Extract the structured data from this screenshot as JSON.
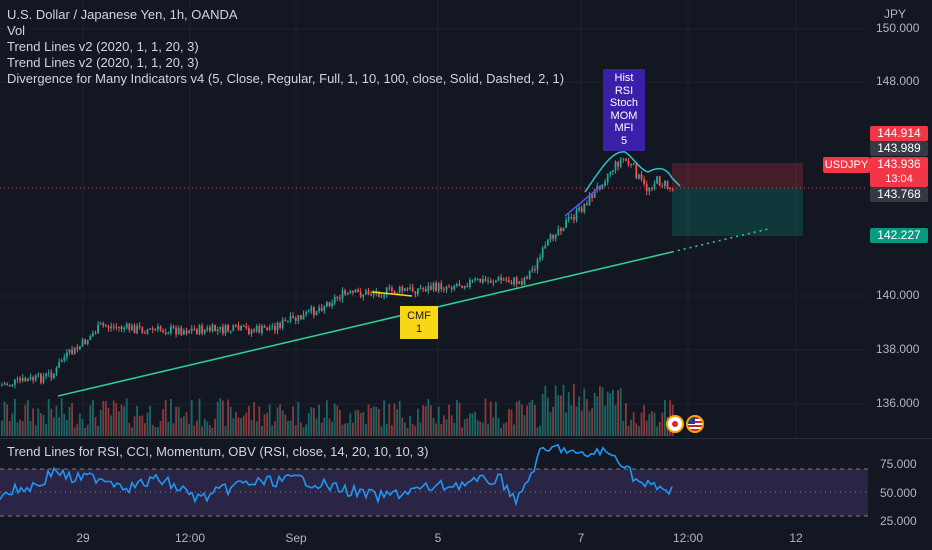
{
  "legend": {
    "title": "U.S. Dollar / Japanese Yen, 1h, OANDA",
    "vol": "Vol",
    "indicator1": "Trend Lines v2 (2020, 1, 1, 20, 3)",
    "indicator2": "Trend Lines v2 (2020, 1, 1, 20, 3)",
    "indicator3": "Divergence for Many Indicators v4 (5, Close, Regular, Full, 1, 10, 100, close, Solid, Dashed, 2, 1)",
    "sub_indicator": "Trend Lines for RSI, CCI, Momentum, OBV (RSI, close, 14, 20, 10, 10, 3)"
  },
  "price_axis": {
    "currency": "JPY",
    "ticks": [
      "150.000",
      "148.000",
      "140.000",
      "138.000",
      "136.000"
    ],
    "labels": {
      "target": "144.914",
      "high": "143.989",
      "current_symbol": "USDJPY",
      "current_price": "143.936",
      "countdown": "13:04",
      "entry": "143.768",
      "stop": "142.227"
    }
  },
  "sub_axis": {
    "ticks": [
      "75.000",
      "50.000",
      "25.000"
    ]
  },
  "time_axis": {
    "labels": [
      "29",
      "12:00",
      "Sep",
      "5",
      "7",
      "12:00",
      "12"
    ]
  },
  "annotations": {
    "divergence_top": [
      "Hist",
      "RSI",
      "Stoch",
      "MOM",
      "MFI",
      "5"
    ],
    "divergence_bottom": [
      "CMF",
      "1"
    ]
  },
  "colors": {
    "background": "#131722",
    "bull": "#26a69a",
    "bear": "#ef5350",
    "trendline": "#2ecc8f",
    "rsi_line": "#2196f3",
    "rsi_band": "#7e57c2",
    "callout_purple": "#3b1fa8",
    "callout_yellow": "#f7d716"
  },
  "icons": [
    "japan-flag-icon",
    "us-flag-icon"
  ]
}
